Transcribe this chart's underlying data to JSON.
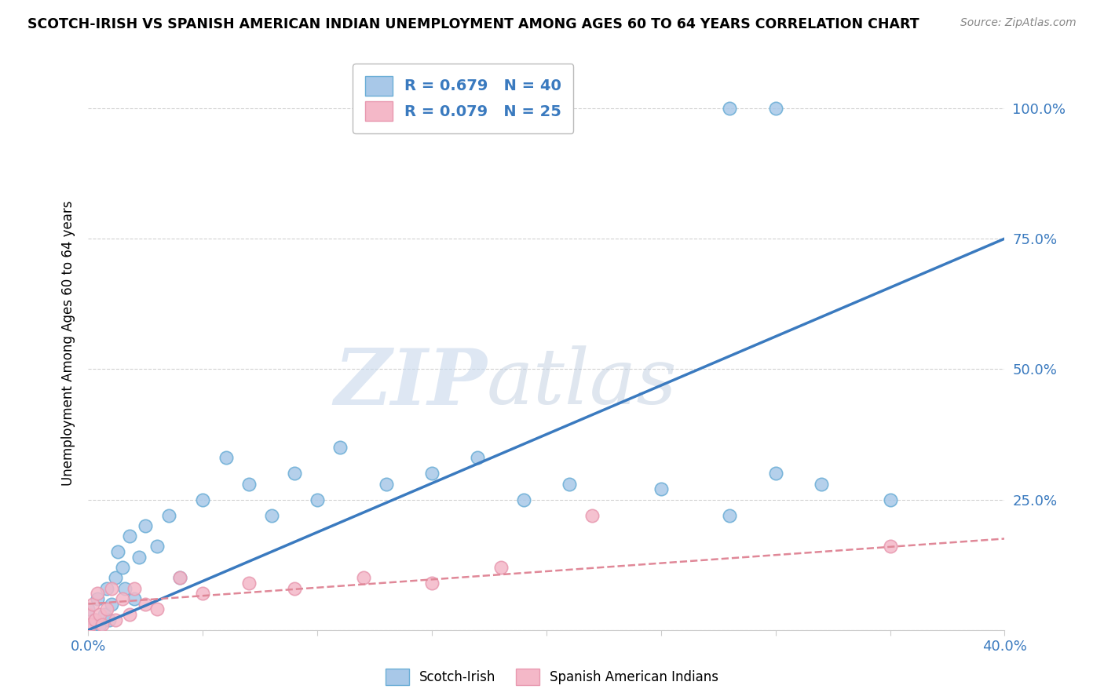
{
  "title": "SCOTCH-IRISH VS SPANISH AMERICAN INDIAN UNEMPLOYMENT AMONG AGES 60 TO 64 YEARS CORRELATION CHART",
  "source": "Source: ZipAtlas.com",
  "ylabel": "Unemployment Among Ages 60 to 64 years",
  "xlim": [
    0.0,
    0.4
  ],
  "ylim": [
    0.0,
    1.1
  ],
  "ytick_positions": [
    0.0,
    0.25,
    0.5,
    0.75,
    1.0
  ],
  "ytick_labels": [
    "",
    "25.0%",
    "50.0%",
    "75.0%",
    "100.0%"
  ],
  "legend_blue_R": "R = 0.679",
  "legend_blue_N": "N = 40",
  "legend_pink_R": "R = 0.079",
  "legend_pink_N": "N = 25",
  "blue_color": "#a8c8e8",
  "blue_edge_color": "#6baed6",
  "blue_line_color": "#3a7abf",
  "pink_color": "#f4b8c8",
  "pink_edge_color": "#e899b0",
  "pink_line_color": "#e08898",
  "blue_line_x0": 0.0,
  "blue_line_y0": 0.0,
  "blue_line_x1": 0.4,
  "blue_line_y1": 0.75,
  "pink_line_x0": 0.0,
  "pink_line_y0": 0.05,
  "pink_line_x1": 0.4,
  "pink_line_y1": 0.175,
  "blue_scatter_x": [
    0.0,
    0.0,
    0.002,
    0.003,
    0.004,
    0.005,
    0.007,
    0.008,
    0.009,
    0.01,
    0.012,
    0.013,
    0.015,
    0.016,
    0.018,
    0.02,
    0.022,
    0.025,
    0.03,
    0.035,
    0.04,
    0.05,
    0.06,
    0.07,
    0.08,
    0.09,
    0.1,
    0.11,
    0.13,
    0.15,
    0.17,
    0.19,
    0.21,
    0.25,
    0.28,
    0.3,
    0.32,
    0.35,
    0.28,
    0.3
  ],
  "blue_scatter_y": [
    0.01,
    0.04,
    0.0,
    0.02,
    0.06,
    0.01,
    0.03,
    0.08,
    0.02,
    0.05,
    0.1,
    0.15,
    0.12,
    0.08,
    0.18,
    0.06,
    0.14,
    0.2,
    0.16,
    0.22,
    0.1,
    0.25,
    0.33,
    0.28,
    0.22,
    0.3,
    0.25,
    0.35,
    0.28,
    0.3,
    0.33,
    0.25,
    0.28,
    0.27,
    0.22,
    0.3,
    0.28,
    0.25,
    1.0,
    1.0
  ],
  "pink_scatter_x": [
    0.0,
    0.0,
    0.001,
    0.002,
    0.003,
    0.004,
    0.005,
    0.006,
    0.008,
    0.01,
    0.012,
    0.015,
    0.018,
    0.02,
    0.025,
    0.03,
    0.04,
    0.05,
    0.07,
    0.09,
    0.12,
    0.15,
    0.18,
    0.22,
    0.35
  ],
  "pink_scatter_y": [
    0.0,
    0.03,
    0.01,
    0.05,
    0.02,
    0.07,
    0.03,
    0.01,
    0.04,
    0.08,
    0.02,
    0.06,
    0.03,
    0.08,
    0.05,
    0.04,
    0.1,
    0.07,
    0.09,
    0.08,
    0.1,
    0.09,
    0.12,
    0.22,
    0.16
  ],
  "watermark_zip": "ZIP",
  "watermark_atlas": "atlas",
  "background_color": "#ffffff",
  "grid_color": "#cccccc"
}
